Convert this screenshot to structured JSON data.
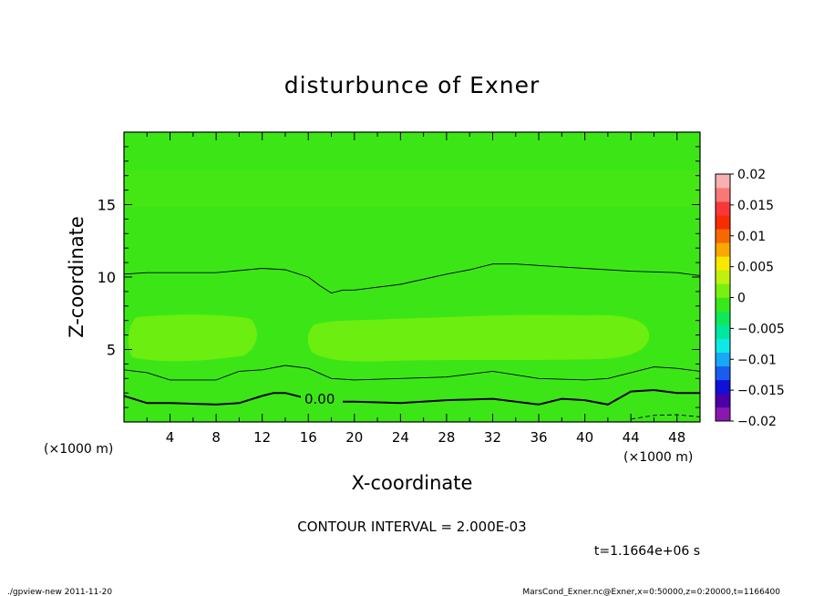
{
  "chart_data": {
    "type": "heatmap",
    "title": "disturbunce of Exner",
    "xlabel": "X-coordinate",
    "ylabel": "Z-coordinate",
    "x_unit": "(×1000 m)",
    "y_unit": "(×1000 m)",
    "xlim": [
      0,
      50
    ],
    "ylim": [
      0,
      20
    ],
    "x_ticks": [
      4,
      8,
      12,
      16,
      20,
      24,
      28,
      32,
      36,
      40,
      44,
      48
    ],
    "y_ticks": [
      5,
      10,
      15
    ],
    "contour_interval_text": "CONTOUR INTERVAL = 2.000E-03",
    "time_text": "t=1.1664e+06 s",
    "contour_label": "0.00",
    "colorbar": {
      "labels": [
        "0.02",
        "0.015",
        "0.01",
        "0.005",
        "0",
        "-0.005",
        "-0.01",
        "-0.015",
        "-0.02"
      ],
      "range": [
        -0.02,
        0.02
      ],
      "colors": [
        "#8a18b0",
        "#4a00a8",
        "#1010d8",
        "#1a5cf0",
        "#18a8f8",
        "#10e8e8",
        "#00e8a0",
        "#10e858",
        "#38e818",
        "#78f010",
        "#c0f010",
        "#f8e800",
        "#f8a800",
        "#f86800",
        "#f82c00",
        "#f83838",
        "#f87878",
        "#f8b0b0"
      ]
    },
    "fill_bands": [
      {
        "value": -0.001,
        "color": "#3ce616",
        "z_bottom": 0,
        "z_top": 20
      },
      {
        "value": 0.001,
        "color": "#6cee10",
        "z_range": [
          4.2,
          7.5
        ]
      }
    ],
    "contours": [
      {
        "value": 0.0,
        "style": "thick",
        "x": [
          0,
          2,
          4,
          8,
          10,
          12,
          13,
          14,
          16,
          18,
          20,
          24,
          28,
          32,
          36,
          38,
          40,
          42,
          44,
          46,
          48,
          50
        ],
        "z": [
          1.8,
          1.3,
          1.3,
          1.2,
          1.3,
          1.8,
          2.0,
          2.0,
          1.6,
          1.4,
          1.4,
          1.3,
          1.5,
          1.6,
          1.2,
          1.6,
          1.5,
          1.2,
          2.1,
          2.2,
          2.0,
          2.0
        ]
      },
      {
        "value": 0.002,
        "style": "thin",
        "x": [
          0,
          2,
          4,
          8,
          10,
          12,
          14,
          16,
          18,
          20,
          24,
          28,
          32,
          36,
          40,
          42,
          44,
          46,
          48,
          50
        ],
        "z": [
          3.6,
          3.4,
          2.9,
          2.9,
          3.5,
          3.6,
          3.9,
          3.7,
          3.0,
          2.9,
          3.0,
          3.1,
          3.5,
          3.0,
          2.9,
          3.0,
          3.4,
          3.8,
          3.7,
          3.5
        ]
      },
      {
        "value": 0.002,
        "style": "thin",
        "x": [
          0,
          2,
          4,
          8,
          12,
          14,
          16,
          17,
          18,
          19,
          20,
          24,
          28,
          30,
          32,
          34,
          36,
          40,
          44,
          48,
          50
        ],
        "z": [
          10.2,
          10.3,
          10.3,
          10.3,
          10.6,
          10.5,
          10.0,
          9.4,
          8.9,
          9.1,
          9.1,
          9.5,
          10.2,
          10.5,
          10.9,
          10.9,
          10.8,
          10.6,
          10.4,
          10.3,
          10.1
        ]
      },
      {
        "value": -0.002,
        "style": "dashed",
        "x": [
          44,
          46,
          48,
          50
        ],
        "z": [
          0.2,
          0.45,
          0.5,
          0.35
        ]
      }
    ]
  },
  "footer": {
    "left": "./gpview-new  2011-11-20",
    "right": "MarsCond_Exner.nc@Exner,x=0:50000,z=0:20000,t=1166400"
  }
}
